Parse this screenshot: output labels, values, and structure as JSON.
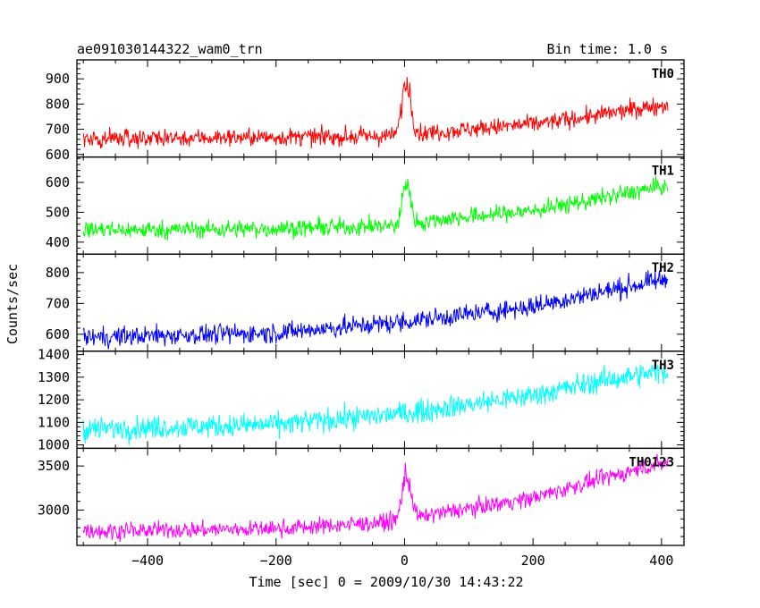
{
  "chart_data": {
    "type": "line",
    "title": "ae091030144322_wam0_trn",
    "subtitle": "Bin time: 1.0 s",
    "xlabel": "Time [sec] 0 = 2009/10/30 14:43:22",
    "ylabel": "Counts/sec",
    "xlim": [
      -510,
      435
    ],
    "x_ticks": [
      -400,
      -200,
      0,
      200,
      400
    ],
    "x_range_data": [
      -500,
      410
    ],
    "grid": false,
    "panels": [
      {
        "name": "TH0",
        "color": "#ff0000",
        "ylim": [
          590,
          975
        ],
        "y_ticks": [
          600,
          700,
          800,
          900
        ],
        "baseline": [
          [
            -500,
            665
          ],
          [
            -200,
            668
          ],
          [
            -10,
            672
          ],
          [
            50,
            690
          ],
          [
            200,
            720
          ],
          [
            300,
            755
          ],
          [
            410,
            800
          ]
        ],
        "noise": 26,
        "peak": {
          "x": 3,
          "height": 230,
          "width": 7
        }
      },
      {
        "name": "TH1",
        "color": "#00ff00",
        "ylim": [
          360,
          685
        ],
        "y_ticks": [
          400,
          500,
          600
        ],
        "baseline": [
          [
            -500,
            440
          ],
          [
            -200,
            445
          ],
          [
            -10,
            455
          ],
          [
            50,
            475
          ],
          [
            200,
            505
          ],
          [
            300,
            545
          ],
          [
            410,
            590
          ]
        ],
        "noise": 22,
        "peak": {
          "x": 3,
          "height": 155,
          "width": 6
        }
      },
      {
        "name": "TH2",
        "color": "#0000ff",
        "ylim": [
          545,
          860
        ],
        "y_ticks": [
          600,
          700,
          800
        ],
        "baseline": [
          [
            -500,
            590
          ],
          [
            -200,
            605
          ],
          [
            0,
            640
          ],
          [
            200,
            690
          ],
          [
            300,
            735
          ],
          [
            410,
            780
          ]
        ],
        "noise": 24,
        "peak": null
      },
      {
        "name": "TH3",
        "color": "#00ffff",
        "ylim": [
          985,
          1415
        ],
        "y_ticks": [
          1000,
          1100,
          1200,
          1300,
          1400
        ],
        "baseline": [
          [
            -500,
            1070
          ],
          [
            -200,
            1090
          ],
          [
            0,
            1140
          ],
          [
            200,
            1220
          ],
          [
            300,
            1280
          ],
          [
            410,
            1330
          ]
        ],
        "noise": 38,
        "peak": null
      },
      {
        "name": "TH0123",
        "color": "#ff00ff",
        "ylim": [
          2600,
          3700
        ],
        "y_ticks": [
          3000,
          3500
        ],
        "baseline": [
          [
            -500,
            2760
          ],
          [
            -200,
            2790
          ],
          [
            -10,
            2870
          ],
          [
            50,
            2960
          ],
          [
            200,
            3140
          ],
          [
            300,
            3340
          ],
          [
            410,
            3550
          ]
        ],
        "noise": 70,
        "peak": {
          "x": 3,
          "height": 560,
          "width": 7
        }
      }
    ]
  }
}
